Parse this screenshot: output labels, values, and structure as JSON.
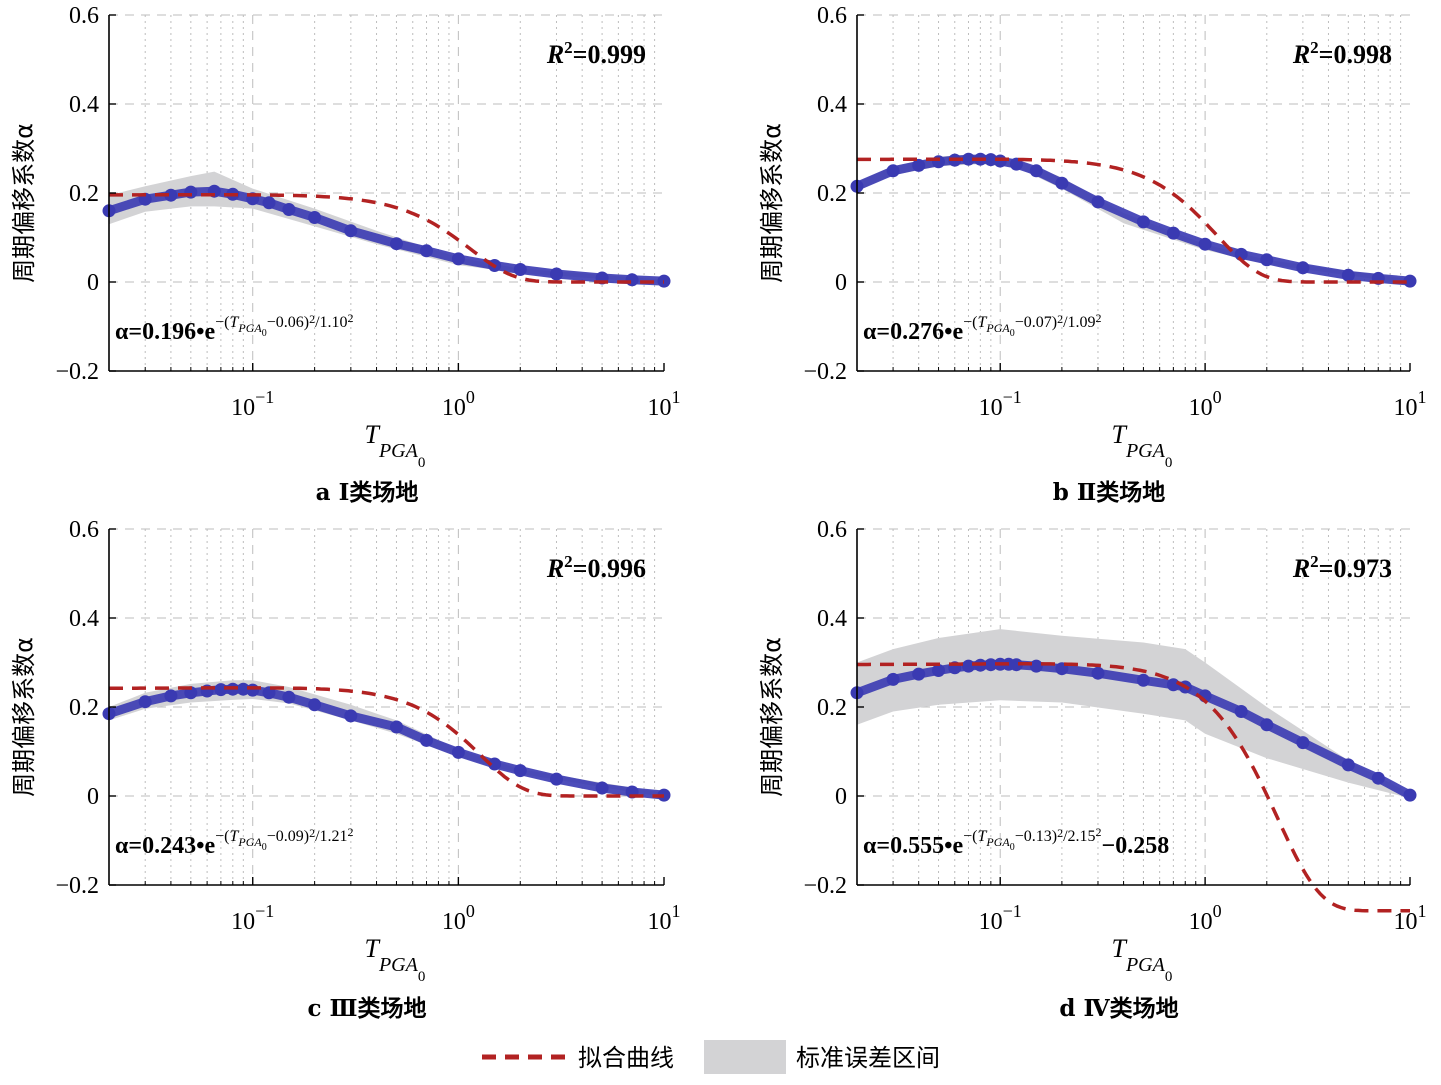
{
  "legend": {
    "fit_label": "拟合曲线",
    "band_label": "标准误差区间"
  },
  "colors": {
    "fit": "#b22222",
    "band": "#d3d3d5",
    "points": "#3a3ab2",
    "grid": "#bdbdbd"
  },
  "chart_data": [
    {
      "type": "scatter",
      "caption": "a Ⅰ类场地",
      "r2": "R²=0.999",
      "formula": {
        "prefix": "α=0.196•e",
        "a": "0.06",
        "s": "1.10",
        "suffix": ""
      },
      "xlabel": "T_PGA0",
      "ylabel": "周期偏移系数α",
      "xscale": "log",
      "xlim": [
        0.02,
        10
      ],
      "ylim": [
        -0.2,
        0.6
      ],
      "yticks": [
        "−0.2",
        "0",
        "0.2",
        "0.4",
        "0.6"
      ],
      "xticks": [
        "10",
        "10",
        "10"
      ],
      "xtick_exponents": [
        "−1",
        "0",
        "1"
      ],
      "fit": {
        "A": 0.196,
        "mu": 0.06,
        "sigma": 1.1,
        "C": 0
      },
      "band": {
        "x": [
          0.02,
          0.03,
          0.05,
          0.065,
          0.1,
          0.2,
          0.4,
          1,
          2,
          10
        ],
        "upper": [
          0.195,
          0.215,
          0.238,
          0.248,
          0.21,
          0.165,
          0.115,
          0.055,
          0.03,
          0.005
        ],
        "lower": [
          0.13,
          0.158,
          0.17,
          0.17,
          0.165,
          0.125,
          0.085,
          0.038,
          0.02,
          -0.003
        ]
      },
      "points": {
        "x": [
          0.02,
          0.03,
          0.04,
          0.05,
          0.065,
          0.08,
          0.1,
          0.12,
          0.15,
          0.2,
          0.3,
          0.5,
          0.7,
          1,
          1.5,
          2,
          3,
          5,
          7,
          10
        ],
        "y": [
          0.16,
          0.186,
          0.195,
          0.202,
          0.204,
          0.197,
          0.187,
          0.178,
          0.163,
          0.145,
          0.115,
          0.086,
          0.07,
          0.052,
          0.037,
          0.028,
          0.018,
          0.009,
          0.005,
          0.002
        ]
      }
    },
    {
      "type": "scatter",
      "caption": "b Ⅱ类场地",
      "r2": "R²=0.998",
      "formula": {
        "prefix": "α=0.276•e",
        "a": "0.07",
        "s": "1.09",
        "suffix": ""
      },
      "xlabel": "T_PGA0",
      "ylabel": "周期偏移系数α",
      "xscale": "log",
      "xlim": [
        0.02,
        10
      ],
      "ylim": [
        -0.2,
        0.6
      ],
      "yticks": [
        "−0.2",
        "0",
        "0.2",
        "0.4",
        "0.6"
      ],
      "xticks": [
        "10",
        "10",
        "10"
      ],
      "xtick_exponents": [
        "−1",
        "0",
        "1"
      ],
      "fit": {
        "A": 0.276,
        "mu": 0.07,
        "sigma": 1.09,
        "C": 0
      },
      "band": {
        "x": [
          0.02,
          0.03,
          0.05,
          0.08,
          0.12,
          0.2,
          0.4,
          1,
          2,
          10
        ],
        "upper": [
          0.225,
          0.26,
          0.282,
          0.287,
          0.275,
          0.235,
          0.155,
          0.085,
          0.05,
          0.006
        ],
        "lower": [
          0.205,
          0.24,
          0.26,
          0.265,
          0.258,
          0.21,
          0.132,
          0.072,
          0.04,
          -0.004
        ]
      },
      "points": {
        "x": [
          0.02,
          0.03,
          0.04,
          0.05,
          0.06,
          0.07,
          0.08,
          0.09,
          0.1,
          0.12,
          0.15,
          0.2,
          0.3,
          0.5,
          0.7,
          1,
          1.5,
          2,
          3,
          5,
          7,
          10
        ],
        "y": [
          0.215,
          0.25,
          0.262,
          0.27,
          0.274,
          0.276,
          0.276,
          0.275,
          0.272,
          0.265,
          0.25,
          0.222,
          0.18,
          0.135,
          0.11,
          0.085,
          0.062,
          0.05,
          0.032,
          0.015,
          0.008,
          0.002
        ]
      }
    },
    {
      "type": "scatter",
      "caption": "c Ⅲ类场地",
      "r2": "R²=0.996",
      "formula": {
        "prefix": "α=0.243•e",
        "a": "0.09",
        "s": "1.21",
        "suffix": ""
      },
      "xlabel": "T_PGA0",
      "ylabel": "周期偏移系数α",
      "xscale": "log",
      "xlim": [
        0.02,
        10
      ],
      "ylim": [
        -0.2,
        0.6
      ],
      "yticks": [
        "−0.2",
        "0",
        "0.2",
        "0.4",
        "0.6"
      ],
      "xticks": [
        "10",
        "10",
        "10"
      ],
      "xtick_exponents": [
        "−1",
        "0",
        "1"
      ],
      "fit": {
        "A": 0.243,
        "mu": 0.09,
        "sigma": 1.21,
        "C": 0
      },
      "band": {
        "x": [
          0.02,
          0.03,
          0.05,
          0.08,
          0.1,
          0.15,
          0.3,
          0.5,
          1,
          2,
          10
        ],
        "upper": [
          0.2,
          0.232,
          0.252,
          0.26,
          0.26,
          0.245,
          0.205,
          0.17,
          0.105,
          0.06,
          0.007
        ],
        "lower": [
          0.17,
          0.196,
          0.21,
          0.216,
          0.218,
          0.208,
          0.17,
          0.14,
          0.088,
          0.05,
          -0.003
        ]
      },
      "points": {
        "x": [
          0.02,
          0.03,
          0.04,
          0.05,
          0.06,
          0.07,
          0.08,
          0.09,
          0.1,
          0.12,
          0.15,
          0.2,
          0.3,
          0.5,
          0.7,
          1,
          1.5,
          2,
          3,
          5,
          7,
          10
        ],
        "y": [
          0.185,
          0.212,
          0.225,
          0.232,
          0.236,
          0.239,
          0.24,
          0.24,
          0.238,
          0.232,
          0.222,
          0.205,
          0.18,
          0.155,
          0.125,
          0.098,
          0.072,
          0.057,
          0.038,
          0.018,
          0.009,
          0.002
        ]
      }
    },
    {
      "type": "scatter",
      "caption": "d Ⅳ类场地",
      "r2": "R²=0.973",
      "formula": {
        "prefix": "α=0.555•e",
        "a": "0.13",
        "s": "2.15",
        "suffix": "−0.258"
      },
      "xlabel": "T_PGA0",
      "ylabel": "周期偏移系数α",
      "xscale": "log",
      "xlim": [
        0.02,
        10
      ],
      "ylim": [
        -0.2,
        0.6
      ],
      "yticks": [
        "−0.2",
        "0",
        "0.2",
        "0.4",
        "0.6"
      ],
      "xticks": [
        "10",
        "10",
        "10"
      ],
      "xtick_exponents": [
        "−1",
        "0",
        "1"
      ],
      "fit": {
        "A": 0.555,
        "mu": 0.13,
        "sigma": 2.15,
        "C": -0.258
      },
      "band": {
        "x": [
          0.02,
          0.03,
          0.05,
          0.1,
          0.2,
          0.5,
          0.8,
          1,
          2,
          5,
          10
        ],
        "upper": [
          0.3,
          0.33,
          0.355,
          0.375,
          0.36,
          0.345,
          0.33,
          0.3,
          0.2,
          0.08,
          0.005
        ],
        "lower": [
          0.16,
          0.19,
          0.205,
          0.215,
          0.21,
          0.185,
          0.17,
          0.14,
          0.085,
          0.03,
          -0.005
        ]
      },
      "points": {
        "x": [
          0.02,
          0.03,
          0.04,
          0.05,
          0.06,
          0.07,
          0.08,
          0.09,
          0.1,
          0.11,
          0.12,
          0.15,
          0.2,
          0.3,
          0.5,
          0.7,
          0.8,
          1,
          1.5,
          2,
          3,
          5,
          7,
          10
        ],
        "y": [
          0.232,
          0.262,
          0.274,
          0.282,
          0.288,
          0.292,
          0.294,
          0.295,
          0.296,
          0.296,
          0.295,
          0.292,
          0.286,
          0.276,
          0.26,
          0.25,
          0.245,
          0.225,
          0.19,
          0.16,
          0.12,
          0.07,
          0.04,
          0.002
        ]
      }
    }
  ]
}
